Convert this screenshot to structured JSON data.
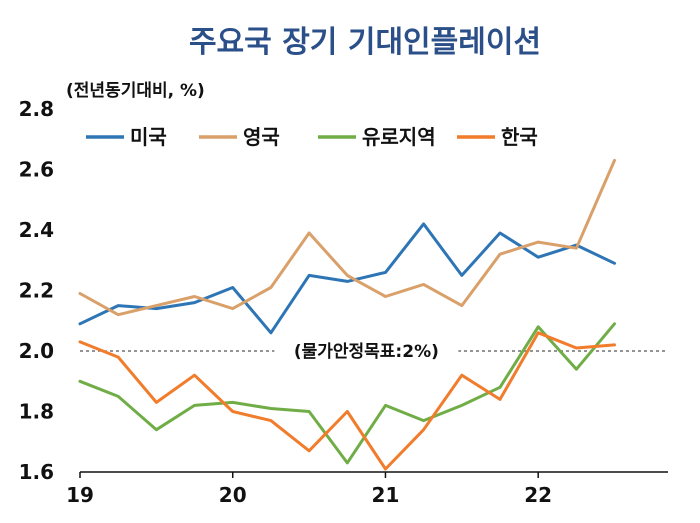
{
  "chart_data": {
    "type": "line",
    "title": "주요국 장기 기대인플레이션",
    "ylabel": "(전년동기대비, %)",
    "ylim": [
      1.6,
      2.8
    ],
    "yticks": [
      "1.6",
      "1.8",
      "2.0",
      "2.2",
      "2.4",
      "2.6",
      "2.8"
    ],
    "x_tick_labels": [
      "19",
      "20",
      "21",
      "22"
    ],
    "x_tick_positions": [
      0,
      4,
      8,
      12
    ],
    "x": [
      0,
      1,
      2,
      3,
      4,
      5,
      6,
      7,
      8,
      9,
      10,
      11,
      12,
      13,
      14
    ],
    "reference_line": {
      "value": 2.0,
      "label": "(물가안정목표:2%)"
    },
    "legend_position": "top",
    "grid": false,
    "series": [
      {
        "name": "미국",
        "color": "#2e75b6",
        "values": [
          2.09,
          2.15,
          2.14,
          2.16,
          2.21,
          2.06,
          2.25,
          2.23,
          2.26,
          2.42,
          2.25,
          2.39,
          2.31,
          2.35,
          2.29
        ]
      },
      {
        "name": "영국",
        "color": "#d9a06a",
        "values": [
          2.19,
          2.12,
          2.15,
          2.18,
          2.14,
          2.21,
          2.39,
          2.25,
          2.18,
          2.22,
          2.15,
          2.32,
          2.36,
          2.34,
          2.63
        ]
      },
      {
        "name": "유로지역",
        "color": "#70ad47",
        "values": [
          1.9,
          1.85,
          1.74,
          1.82,
          1.83,
          1.81,
          1.8,
          1.63,
          1.82,
          1.77,
          1.82,
          1.88,
          2.08,
          1.94,
          2.09
        ]
      },
      {
        "name": "한국",
        "color": "#f07c2c",
        "values": [
          2.03,
          1.98,
          1.83,
          1.92,
          1.8,
          1.77,
          1.67,
          1.8,
          1.61,
          1.74,
          1.92,
          1.84,
          2.06,
          2.01,
          2.02
        ]
      }
    ]
  },
  "colors": {
    "title": "#2b4f88",
    "reference_line": "#555555",
    "axis": "#111111"
  }
}
